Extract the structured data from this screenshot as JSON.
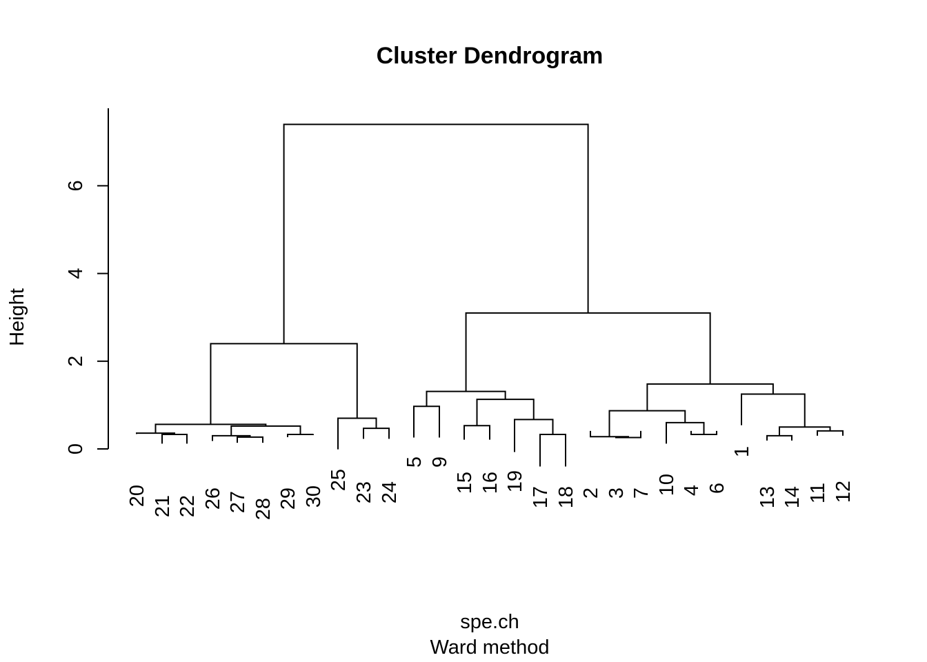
{
  "chart_data": {
    "type": "dendrogram",
    "title": "Cluster Dendrogram",
    "xlabel": "spe.ch",
    "subtitle": "Ward method",
    "ylabel": "Height",
    "ylim": [
      0,
      7.4
    ],
    "y_ticks": [
      0,
      2,
      4,
      6
    ],
    "grid": false,
    "leaf_order": [
      "20",
      "21",
      "22",
      "26",
      "27",
      "28",
      "29",
      "30",
      "25",
      "23",
      "24",
      "5",
      "9",
      "15",
      "16",
      "19",
      "17",
      "18",
      "2",
      "3",
      "7",
      "10",
      "4",
      "6",
      "1",
      "13",
      "14",
      "11",
      "12"
    ],
    "merges": [
      {
        "a": "3",
        "b": "7",
        "height": 0.26
      },
      {
        "a": "27",
        "b": "28",
        "height": 0.27
      },
      {
        "a": "21",
        "b": "22",
        "height": 0.33
      },
      {
        "a": "17",
        "b": "18",
        "height": 0.33
      },
      {
        "a": "4",
        "b": "6",
        "height": 0.33
      },
      {
        "a": "29",
        "b": "30",
        "height": 0.33
      },
      {
        "a": "2",
        "b": "3+7",
        "height": 0.28
      },
      {
        "a": "13",
        "b": "14",
        "height": 0.3
      },
      {
        "a": "26",
        "b": "27+28",
        "height": 0.3
      },
      {
        "a": "20",
        "b": "21+22",
        "height": 0.36
      },
      {
        "a": "11",
        "b": "12",
        "height": 0.41
      },
      {
        "a": "23",
        "b": "24",
        "height": 0.47
      },
      {
        "a": "26..28",
        "b": "29+30",
        "height": 0.52
      },
      {
        "a": "13+14",
        "b": "11+12",
        "height": 0.5
      },
      {
        "a": "20..22",
        "b": "26..30",
        "height": 0.56
      },
      {
        "a": "10",
        "b": "4+6",
        "height": 0.6
      },
      {
        "a": "16",
        "b": "19+17+18",
        "height": 1.13
      },
      {
        "a": "19",
        "b": "17+18",
        "height": 0.67
      },
      {
        "a": "25",
        "b": "23+24",
        "height": 0.7
      },
      {
        "a": "2+3+7",
        "b": "10+4+6",
        "height": 0.87
      },
      {
        "a": "5",
        "b": "9",
        "height": 0.97
      },
      {
        "a": "1",
        "b": "13+14+11+12",
        "height": 1.25
      },
      {
        "a": "5+9",
        "b": "15..18",
        "height": 1.31
      },
      {
        "a": "2..6",
        "b": "1..12",
        "height": 1.48
      },
      {
        "a": "20..30",
        "b": "25+23+24",
        "height": 2.4
      },
      {
        "a": "5..18",
        "b": "2..12",
        "height": 3.1
      },
      {
        "a": "left",
        "b": "right",
        "height": 7.4
      }
    ]
  }
}
